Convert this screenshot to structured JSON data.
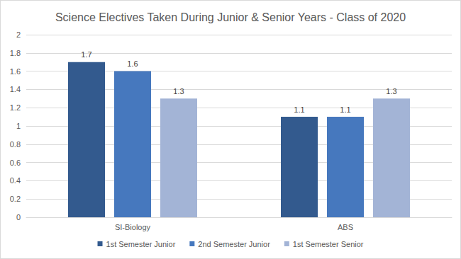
{
  "chart_data": {
    "type": "bar",
    "title": "Science Electives Taken During Junior & Senior Years - Class of 2020",
    "categories": [
      "SI-Biology",
      "ABS"
    ],
    "series": [
      {
        "name": "1st Semester Junior",
        "color": "#335a8e",
        "values": [
          1.7,
          1.1
        ]
      },
      {
        "name": "2nd Semester Junior",
        "color": "#4678be",
        "values": [
          1.6,
          1.1
        ]
      },
      {
        "name": "1st Semester Senior",
        "color": "#a3b4d6",
        "values": [
          1.3,
          1.3
        ]
      }
    ],
    "ylim": [
      0,
      2
    ],
    "yticks": [
      0,
      0.2,
      0.4,
      0.6,
      0.8,
      1,
      1.2,
      1.4,
      1.6,
      1.8,
      2
    ],
    "grid": true,
    "legend": "bottom",
    "data_labels": true
  }
}
